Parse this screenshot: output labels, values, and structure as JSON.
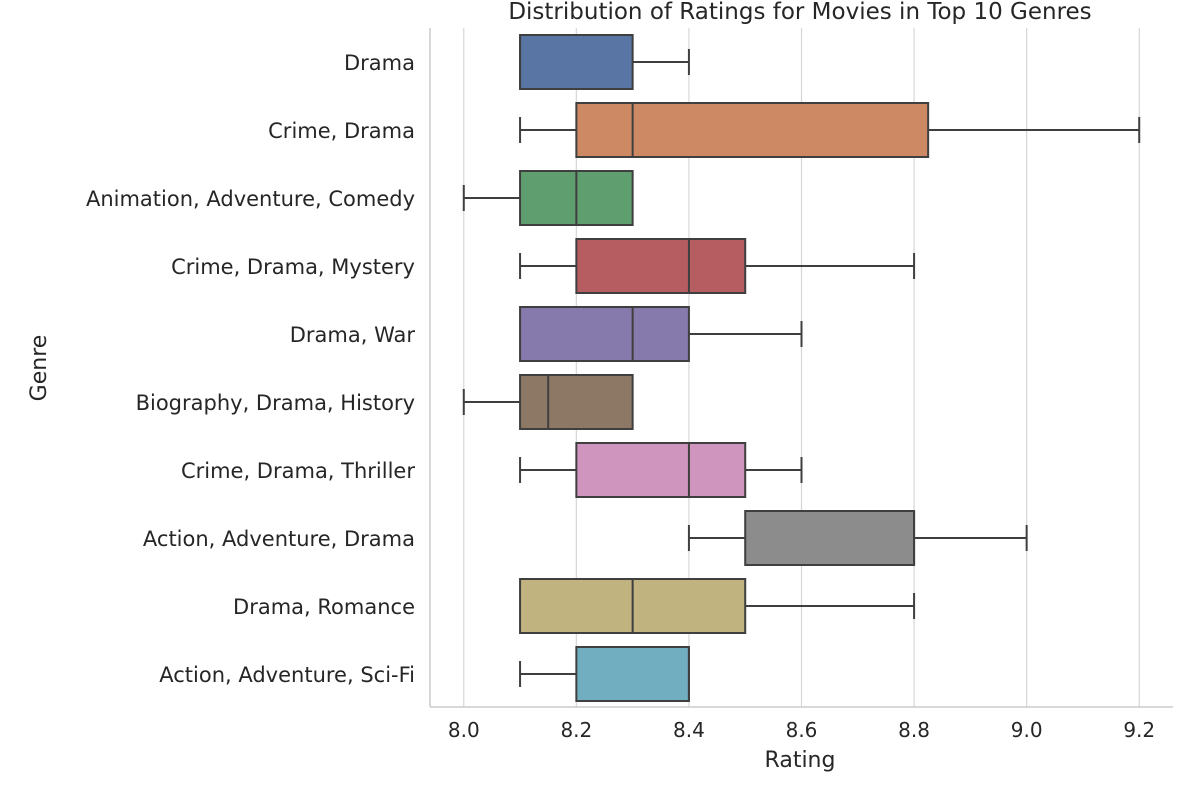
{
  "chart_data": {
    "type": "box",
    "orientation": "horizontal",
    "title": "Distribution of Ratings for Movies in Top 10 Genres",
    "xlabel": "Rating",
    "ylabel": "Genre",
    "xlim": [
      7.94,
      9.26
    ],
    "xticks": [
      8.0,
      8.2,
      8.4,
      8.6,
      8.8,
      9.0,
      9.2
    ],
    "xtick_labels": [
      "8.0",
      "8.2",
      "8.4",
      "8.6",
      "8.8",
      "9.0",
      "9.2"
    ],
    "grid": "vertical",
    "categories": [
      "Drama",
      "Crime, Drama",
      "Animation, Adventure, Comedy",
      "Crime, Drama, Mystery",
      "Drama, War",
      "Biography, Drama, History",
      "Crime, Drama, Thriller",
      "Action, Adventure, Drama",
      "Drama, Romance",
      "Action, Adventure, Sci-Fi"
    ],
    "boxes": [
      {
        "category": "Drama",
        "whisker_low": 8.1,
        "q1": 8.1,
        "median": 8.1,
        "q3": 8.3,
        "whisker_high": 8.4,
        "color": "#5875a4"
      },
      {
        "category": "Crime, Drama",
        "whisker_low": 8.1,
        "q1": 8.2,
        "median": 8.3,
        "q3": 8.825,
        "whisker_high": 9.2,
        "color": "#cc8963"
      },
      {
        "category": "Animation, Adventure, Comedy",
        "whisker_low": 8.0,
        "q1": 8.1,
        "median": 8.2,
        "q3": 8.3,
        "whisker_high": 8.3,
        "color": "#5f9e6e"
      },
      {
        "category": "Crime, Drama, Mystery",
        "whisker_low": 8.1,
        "q1": 8.2,
        "median": 8.4,
        "q3": 8.5,
        "whisker_high": 8.8,
        "color": "#b55d60"
      },
      {
        "category": "Drama, War",
        "whisker_low": 8.1,
        "q1": 8.1,
        "median": 8.3,
        "q3": 8.4,
        "whisker_high": 8.6,
        "color": "#857aab"
      },
      {
        "category": "Biography, Drama, History",
        "whisker_low": 8.0,
        "q1": 8.1,
        "median": 8.15,
        "q3": 8.3,
        "whisker_high": 8.3,
        "color": "#8d7866"
      },
      {
        "category": "Crime, Drama, Thriller",
        "whisker_low": 8.1,
        "q1": 8.2,
        "median": 8.4,
        "q3": 8.5,
        "whisker_high": 8.6,
        "color": "#d095bf"
      },
      {
        "category": "Action, Adventure, Drama",
        "whisker_low": 8.4,
        "q1": 8.5,
        "median": 8.8,
        "q3": 8.8,
        "whisker_high": 9.0,
        "color": "#8c8c8c"
      },
      {
        "category": "Drama, Romance",
        "whisker_low": 8.1,
        "q1": 8.1,
        "median": 8.3,
        "q3": 8.5,
        "whisker_high": 8.8,
        "color": "#c1b37f"
      },
      {
        "category": "Action, Adventure, Sci-Fi",
        "whisker_low": 8.1,
        "q1": 8.2,
        "median": 8.4,
        "q3": 8.4,
        "whisker_high": 8.4,
        "color": "#71aec0"
      }
    ],
    "colors": {
      "grid": "#d6d6d6",
      "spine": "#cccccc",
      "box_edge": "#3f3f3f",
      "text": "#262626"
    }
  }
}
